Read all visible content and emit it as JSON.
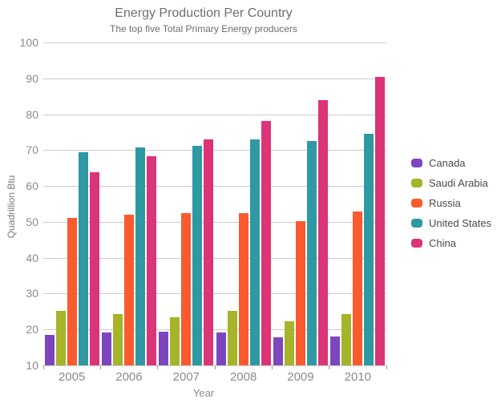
{
  "title": "Energy Production Per Country",
  "subtitle": "The top five Total Primary Energy producers",
  "axes": {
    "x_title": "Year",
    "y_title": "Quadrillion Btu"
  },
  "colors": {
    "grid": "#cccccc",
    "tick": "#9a9a9a",
    "axis_text": "#8a8a8a",
    "title_text": "#6e6e6e",
    "legend_text": "#4a4a4a"
  },
  "chart_data": {
    "type": "bar",
    "title": "Energy Production Per Country",
    "subtitle": "The top five Total Primary Energy producers",
    "xlabel": "Year",
    "ylabel": "Quadrillion Btu",
    "ylim": [
      10,
      100
    ],
    "ytick_step": 10,
    "grid": true,
    "legend_position": "right",
    "categories": [
      "2005",
      "2006",
      "2007",
      "2008",
      "2009",
      "2010"
    ],
    "series": [
      {
        "name": "Canada",
        "color": "#7d46be",
        "values": [
          18.6,
          19.1,
          19.4,
          19.2,
          17.9,
          18.1
        ]
      },
      {
        "name": "Saudi Arabia",
        "color": "#a5b428",
        "values": [
          25.1,
          24.3,
          23.5,
          25.2,
          22.4,
          24.4
        ]
      },
      {
        "name": "Russia",
        "color": "#fa5a2d",
        "values": [
          51.0,
          51.9,
          52.4,
          52.5,
          50.3,
          53.0
        ]
      },
      {
        "name": "United States",
        "color": "#2e99a3",
        "values": [
          69.4,
          70.7,
          71.2,
          73.1,
          72.5,
          74.6
        ]
      },
      {
        "name": "China",
        "color": "#db3477",
        "values": [
          63.9,
          68.2,
          73.1,
          78.2,
          83.9,
          90.3
        ]
      }
    ]
  }
}
